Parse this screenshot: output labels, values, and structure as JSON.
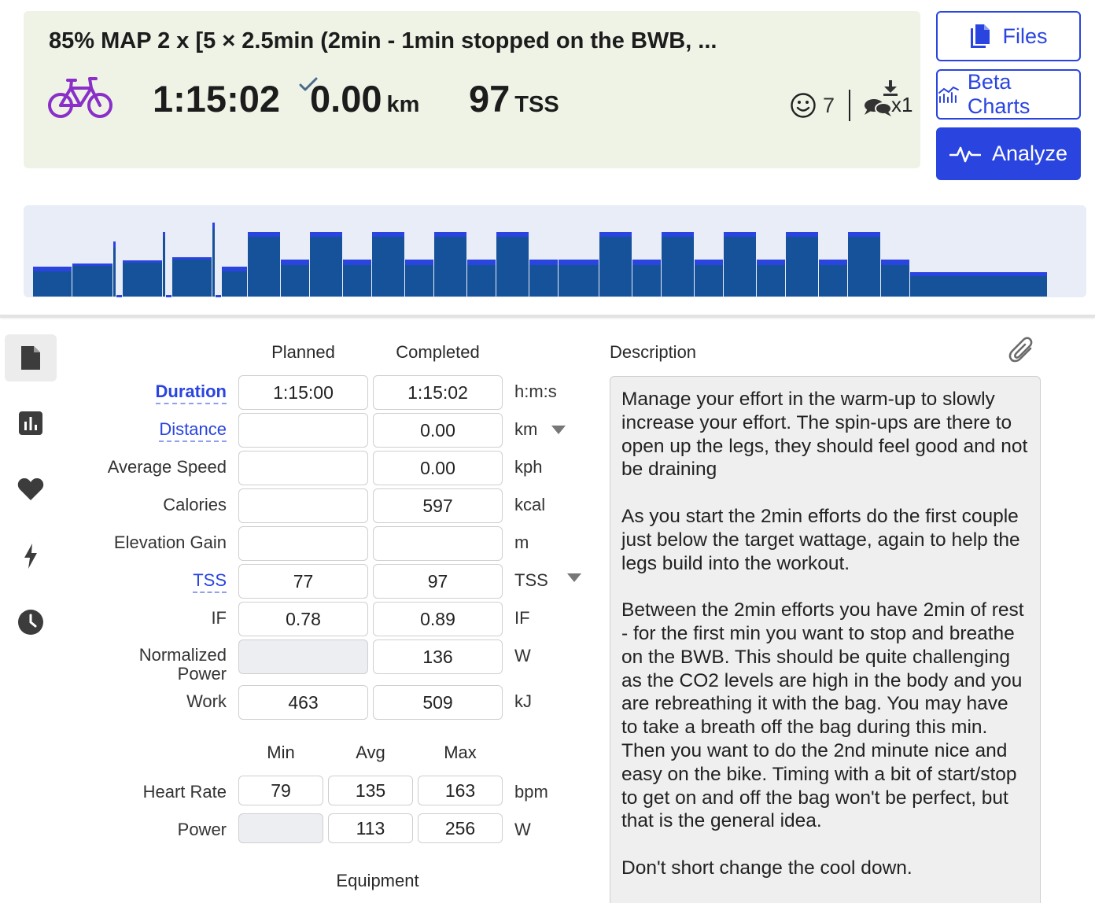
{
  "summary": {
    "title": "85% MAP 2 x [5 × 2.5min (2min - 1min stopped on the BWB, ...",
    "duration": "1:15:02",
    "distance": "0.00",
    "distance_unit": "km",
    "tss": "97",
    "tss_unit": "TSS",
    "feel_count": "7",
    "comment_count": "x1",
    "sport_icon": "bike-icon",
    "accent_color": "#8a2fc8"
  },
  "buttons": {
    "files": "Files",
    "beta_charts": "Beta Charts",
    "analyze": "Analyze",
    "primary_color": "#2a44e0"
  },
  "workout_chart": {
    "type": "bar",
    "title": "",
    "intervals": [
      {
        "width": 50,
        "planned": 38,
        "actual": 32
      },
      {
        "width": 52,
        "planned": 42,
        "actual": 40
      },
      {
        "width": 4,
        "planned": 70,
        "actual": 62
      },
      {
        "width": 8,
        "planned": 2,
        "actual": 2
      },
      {
        "width": 51,
        "planned": 46,
        "actual": 44
      },
      {
        "width": 4,
        "planned": 82,
        "actual": 76
      },
      {
        "width": 8,
        "planned": 2,
        "actual": 2
      },
      {
        "width": 51,
        "planned": 50,
        "actual": 48
      },
      {
        "width": 4,
        "planned": 94,
        "actual": 86
      },
      {
        "width": 8,
        "planned": 2,
        "actual": 2
      },
      {
        "width": 33,
        "planned": 38,
        "actual": 32
      },
      {
        "width": 42,
        "planned": 82,
        "actual": 76
      },
      {
        "width": 37,
        "planned": 47,
        "actual": 40
      },
      {
        "width": 42,
        "planned": 82,
        "actual": 76
      },
      {
        "width": 37,
        "planned": 47,
        "actual": 40
      },
      {
        "width": 42,
        "planned": 82,
        "actual": 76
      },
      {
        "width": 37,
        "planned": 47,
        "actual": 40
      },
      {
        "width": 42,
        "planned": 82,
        "actual": 76
      },
      {
        "width": 37,
        "planned": 47,
        "actual": 40
      },
      {
        "width": 42,
        "planned": 82,
        "actual": 76
      },
      {
        "width": 37,
        "planned": 47,
        "actual": 40
      },
      {
        "width": 52,
        "planned": 47,
        "actual": 40
      },
      {
        "width": 42,
        "planned": 82,
        "actual": 76
      },
      {
        "width": 37,
        "planned": 47,
        "actual": 40
      },
      {
        "width": 42,
        "planned": 82,
        "actual": 76
      },
      {
        "width": 37,
        "planned": 47,
        "actual": 40
      },
      {
        "width": 42,
        "planned": 82,
        "actual": 76
      },
      {
        "width": 37,
        "planned": 47,
        "actual": 40
      },
      {
        "width": 42,
        "planned": 82,
        "actual": 76
      },
      {
        "width": 37,
        "planned": 47,
        "actual": 40
      },
      {
        "width": 42,
        "planned": 82,
        "actual": 76
      },
      {
        "width": 37,
        "planned": 47,
        "actual": 40
      },
      {
        "width": 175,
        "planned": 31,
        "actual": 26
      }
    ],
    "bar_color": "#16529a",
    "target_color": "#2a44e0"
  },
  "rail": {
    "items": [
      "document-icon",
      "bar-chart-icon",
      "heart-icon",
      "lightning-icon",
      "clock-icon"
    ]
  },
  "metrics": {
    "col_planned": "Planned",
    "col_completed": "Completed",
    "rows": [
      {
        "label": "Duration",
        "planned": "1:15:00",
        "completed": "1:15:02",
        "unit": "h:m:s"
      },
      {
        "label": "Distance",
        "planned": "",
        "completed": "0.00",
        "unit": "km"
      },
      {
        "label": "Average Speed",
        "planned": "",
        "completed": "0.00",
        "unit": "kph"
      },
      {
        "label": "Calories",
        "planned": "",
        "completed": "597",
        "unit": "kcal"
      },
      {
        "label": "Elevation Gain",
        "planned": "",
        "completed": "",
        "unit": "m"
      },
      {
        "label": "TSS",
        "planned": "77",
        "completed": "97",
        "unit": "TSS"
      },
      {
        "label": "IF",
        "planned": "0.78",
        "completed": "0.89",
        "unit": "IF"
      },
      {
        "label_line1": "Normalized",
        "label_line2": "Power",
        "planned": "",
        "completed": "136",
        "unit": "W"
      },
      {
        "label": "Work",
        "planned": "463",
        "completed": "509",
        "unit": "kJ"
      }
    ]
  },
  "min_avg_max": {
    "col_min": "Min",
    "col_avg": "Avg",
    "col_max": "Max",
    "rows": [
      {
        "label": "Heart Rate",
        "min": "79",
        "avg": "135",
        "max": "163",
        "unit": "bpm"
      },
      {
        "label": "Power",
        "min": "",
        "avg": "113",
        "max": "256",
        "unit": "W"
      }
    ]
  },
  "equipment": {
    "label": "Equipment"
  },
  "description": {
    "label": "Description",
    "text": "Manage your effort in the warm-up to slowly increase your effort. The spin-ups are there to open up the legs, they should feel good and not be draining\n\nAs you start the 2min efforts do the first couple just below the target wattage, again to help the legs build into the workout.\n\nBetween the 2min efforts you have 2min of rest - for the first min you want to stop and breathe on the BWB. This should be quite challenging as the CO2 levels are high in the body and you are rebreathing it with the bag. You may have to take a breath off the bag during this min. Then you want to do the 2nd minute nice and easy on the bike. Timing with a bit of start/stop to get on and off the bag won't be perfect, but that is the general idea.\n\nDon't short change the cool down."
  }
}
